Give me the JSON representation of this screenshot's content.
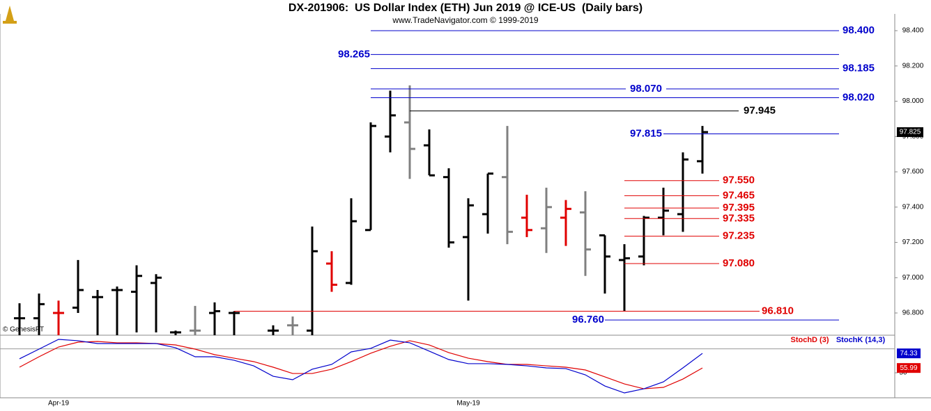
{
  "chart_data": [
    {
      "type": "ohlc",
      "title": "DX-201906:  US Dollar Index (ETH) Jun 2019 @ ICE-US  (Daily bars)",
      "subtitle": "www.TradeNavigator.com © 1999-2019",
      "watermark": "© GenesisFT",
      "categories": [
        null,
        null,
        "Apr-19",
        null,
        null,
        null,
        null,
        null,
        null,
        null,
        null,
        null,
        null,
        null,
        null,
        null,
        null,
        null,
        null,
        null,
        null,
        null,
        null,
        "May-19",
        null,
        null,
        null,
        null,
        null,
        null,
        null,
        null,
        null,
        null,
        null,
        null
      ],
      "open": [
        96.77,
        96.77,
        96.8,
        96.83,
        96.89,
        96.93,
        96.92,
        96.97,
        96.69,
        96.7,
        96.8,
        96.8,
        null,
        96.7,
        96.73,
        96.7,
        97.08,
        96.97,
        97.27,
        97.8,
        97.88,
        97.75,
        97.57,
        97.23,
        97.36,
        97.57,
        97.34,
        97.28,
        97.34,
        97.37,
        97.24,
        97.1,
        97.12,
        97.34,
        97.36,
        97.66
      ],
      "high": [
        96.855,
        96.91,
        96.87,
        97.1,
        96.93,
        96.95,
        97.07,
        97.02,
        96.7,
        96.84,
        96.86,
        96.81,
        null,
        96.73,
        96.78,
        97.29,
        97.15,
        97.45,
        97.88,
        98.06,
        98.09,
        97.84,
        97.62,
        97.45,
        97.59,
        97.86,
        97.47,
        97.51,
        97.44,
        97.49,
        97.24,
        97.19,
        97.35,
        97.51,
        97.71,
        97.86
      ],
      "low": [
        96.65,
        96.65,
        96.65,
        96.8,
        96.65,
        96.65,
        96.69,
        96.69,
        96.65,
        96.65,
        96.65,
        96.65,
        null,
        96.65,
        96.65,
        96.65,
        96.92,
        96.96,
        97.27,
        97.71,
        97.56,
        97.58,
        97.17,
        96.87,
        97.25,
        97.19,
        97.23,
        97.14,
        97.18,
        97.01,
        96.91,
        96.81,
        97.07,
        97.24,
        97.26,
        97.59
      ],
      "close": [
        96.77,
        96.85,
        96.8,
        96.93,
        96.89,
        96.93,
        97.01,
        97.0,
        96.69,
        96.7,
        96.81,
        96.8,
        null,
        96.7,
        96.73,
        97.15,
        96.96,
        97.32,
        97.86,
        97.92,
        97.73,
        97.58,
        97.2,
        97.41,
        97.59,
        97.26,
        97.27,
        97.4,
        97.39,
        97.16,
        97.12,
        97.11,
        97.34,
        97.38,
        97.67,
        97.825
      ],
      "colors": [
        "#000000",
        "#000000",
        "#e00000",
        "#000000",
        "#000000",
        "#000000",
        "#000000",
        "#000000",
        "#000000",
        "#808080",
        "#000000",
        "#000000",
        null,
        "#000000",
        "#808080",
        "#000000",
        "#e00000",
        "#000000",
        "#000000",
        "#000000",
        "#808080",
        "#000000",
        "#000000",
        "#000000",
        "#000000",
        "#808080",
        "#e00000",
        "#808080",
        "#e00000",
        "#808080",
        "#000000",
        "#000000",
        "#000000",
        "#000000",
        "#000000",
        "#000000"
      ],
      "ylim": [
        96.674,
        98.495
      ],
      "yticks": [
        {
          "value": 96.8,
          "label": "96.800"
        },
        {
          "value": 97.0,
          "label": "97.000"
        },
        {
          "value": 97.2,
          "label": "97.200"
        },
        {
          "value": 97.4,
          "label": "97.400"
        },
        {
          "value": 97.6,
          "label": "97.600"
        },
        {
          "value": 97.8,
          "label": "97.800"
        },
        {
          "value": 98.0,
          "label": "98.000"
        },
        {
          "value": 98.2,
          "label": "98.200"
        },
        {
          "value": 98.4,
          "label": "98.400"
        }
      ],
      "last_price": {
        "value": 97.825,
        "label": "97.825"
      },
      "levels": [
        {
          "value": 98.4,
          "label": "98.400",
          "color": "#0000cc"
        },
        {
          "value": 98.265,
          "label": "98.265",
          "color": "#0000cc"
        },
        {
          "value": 98.185,
          "label": "98.185",
          "color": "#0000cc"
        },
        {
          "value": 98.07,
          "label": "98.070",
          "color": "#0000cc"
        },
        {
          "value": 98.02,
          "label": "98.020",
          "color": "#0000cc"
        },
        {
          "value": 97.945,
          "label": "97.945",
          "color": "#000000"
        },
        {
          "value": 97.815,
          "label": "97.815",
          "color": "#0000cc"
        },
        {
          "value": 97.55,
          "label": "97.550",
          "color": "#e00000"
        },
        {
          "value": 97.465,
          "label": "97.465",
          "color": "#e00000"
        },
        {
          "value": 97.395,
          "label": "97.395",
          "color": "#e00000"
        },
        {
          "value": 97.335,
          "label": "97.335",
          "color": "#e00000"
        },
        {
          "value": 97.235,
          "label": "97.235",
          "color": "#e00000"
        },
        {
          "value": 97.08,
          "label": "97.080",
          "color": "#e00000"
        },
        {
          "value": 96.81,
          "label": "96.810",
          "color": "#e00000"
        },
        {
          "value": 96.76,
          "label": "96.760",
          "color": "#0000cc"
        }
      ]
    },
    {
      "type": "line",
      "series": [
        {
          "name": "StochD (3)",
          "color": "#e00000",
          "values": [
            57.0,
            70.1,
            82.3,
            88.4,
            89.3,
            87.6,
            87.6,
            86.7,
            84.9,
            79.7,
            72.7,
            68.3,
            64.0,
            57.0,
            49.1,
            49.1,
            54.4,
            64.0,
            74.5,
            83.2,
            90.2,
            84.9,
            75.3,
            68.3,
            64.0,
            60.5,
            60.5,
            58.7,
            57.0,
            53.5,
            44.8,
            36.0,
            29.9,
            31.7,
            42.1,
            55.99
          ],
          "value_labels": [
            null,
            null,
            null,
            null,
            null,
            null,
            null,
            null,
            null,
            null,
            null,
            null,
            null,
            null,
            null,
            null,
            null,
            null,
            null,
            null,
            null,
            null,
            null,
            null,
            null,
            null,
            null,
            null,
            null,
            null,
            null,
            null,
            null,
            null,
            null,
            "55.99"
          ]
        },
        {
          "name": "StochK (14,3)",
          "color": "#0000cc",
          "values": [
            67.5,
            79.7,
            91.9,
            90.2,
            86.7,
            86.7,
            86.7,
            86.7,
            81.4,
            70.1,
            70.1,
            65.7,
            58.7,
            45.6,
            41.3,
            54.4,
            60.5,
            76.2,
            80.6,
            91.0,
            87.6,
            77.1,
            66.6,
            61.4,
            61.4,
            60.5,
            58.7,
            56.1,
            55.2,
            47.4,
            33.4,
            24.7,
            29.9,
            38.6,
            56.1,
            74.33
          ],
          "value_labels": [
            null,
            null,
            null,
            null,
            null,
            null,
            null,
            null,
            null,
            null,
            null,
            null,
            null,
            null,
            null,
            null,
            null,
            null,
            null,
            null,
            null,
            null,
            null,
            null,
            null,
            null,
            null,
            null,
            null,
            null,
            null,
            null,
            null,
            null,
            null,
            "74.33"
          ]
        }
      ],
      "ylim": [
        18.6,
        95.4
      ],
      "yticks": [
        50
      ],
      "hline": 80
    }
  ]
}
